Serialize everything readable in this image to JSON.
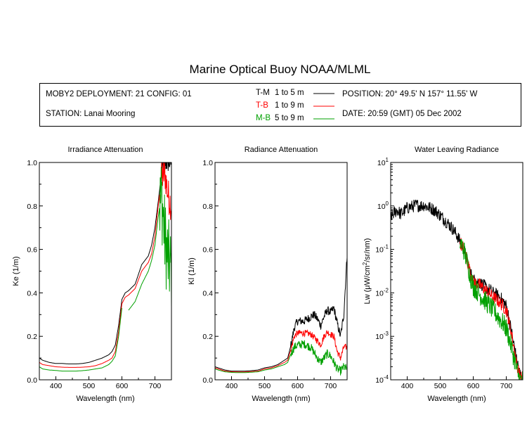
{
  "title": "Marine Optical Buoy NOAA/MLML",
  "info": {
    "deployment": "MOBY2 DEPLOYMENT: 21 CONFIG: 01",
    "station": "STATION: Lanai Mooring",
    "position": "POSITION: 20° 49.5' N   157° 11.55' W",
    "date": "DATE: 20:59 (GMT) 05 Dec 2002",
    "legend": [
      {
        "code": "T-M",
        "range": "1 to 5  m",
        "color": "#000000"
      },
      {
        "code": "T-B",
        "range": "1 to 9  m",
        "color": "#ff0000"
      },
      {
        "code": "M-B",
        "range": "5 to 9  m",
        "color": "#00a000"
      }
    ]
  },
  "chart_data": [
    {
      "type": "line",
      "title": "Irradiance Attenuation",
      "xlabel": "Wavelength (nm)",
      "ylabel": "Ke  (1/m)",
      "xlim": [
        350,
        750
      ],
      "ylim": [
        0,
        1.0
      ],
      "x_ticks": [
        "400",
        "500",
        "600",
        "700"
      ],
      "y_ticks": [
        "0.0",
        "0.2",
        "0.4",
        "0.6",
        "0.8",
        "1.0"
      ],
      "series": [
        {
          "legend": "T-M",
          "color": "#000000",
          "noise_from": 720,
          "noise_amp": 0.05,
          "points": [
            [
              350,
              0.1
            ],
            [
              360,
              0.09
            ],
            [
              380,
              0.08
            ],
            [
              400,
              0.075
            ],
            [
              420,
              0.075
            ],
            [
              440,
              0.073
            ],
            [
              460,
              0.073
            ],
            [
              480,
              0.075
            ],
            [
              500,
              0.08
            ],
            [
              520,
              0.09
            ],
            [
              540,
              0.1
            ],
            [
              560,
              0.115
            ],
            [
              570,
              0.13
            ],
            [
              580,
              0.16
            ],
            [
              590,
              0.25
            ],
            [
              600,
              0.37
            ],
            [
              610,
              0.4
            ],
            [
              620,
              0.41
            ],
            [
              640,
              0.44
            ],
            [
              660,
              0.53
            ],
            [
              680,
              0.57
            ],
            [
              690,
              0.62
            ],
            [
              700,
              0.7
            ],
            [
              710,
              0.82
            ],
            [
              720,
              0.95
            ],
            [
              730,
              1.0
            ],
            [
              750,
              1.0
            ]
          ]
        },
        {
          "legend": "T-B",
          "color": "#ff0000",
          "noise_from": 715,
          "noise_amp": 0.08,
          "points": [
            [
              350,
              0.08
            ],
            [
              360,
              0.07
            ],
            [
              380,
              0.065
            ],
            [
              400,
              0.06
            ],
            [
              420,
              0.058
            ],
            [
              440,
              0.057
            ],
            [
              460,
              0.057
            ],
            [
              480,
              0.058
            ],
            [
              500,
              0.06
            ],
            [
              520,
              0.065
            ],
            [
              540,
              0.075
            ],
            [
              560,
              0.09
            ],
            [
              570,
              0.1
            ],
            [
              580,
              0.13
            ],
            [
              590,
              0.22
            ],
            [
              600,
              0.35
            ],
            [
              610,
              0.38
            ],
            [
              620,
              0.39
            ],
            [
              640,
              0.42
            ],
            [
              660,
              0.5
            ],
            [
              680,
              0.54
            ],
            [
              690,
              0.58
            ],
            [
              700,
              0.66
            ],
            [
              710,
              0.8
            ],
            [
              720,
              0.93
            ],
            [
              730,
              0.95
            ],
            [
              740,
              0.85
            ],
            [
              750,
              0.8
            ]
          ]
        },
        {
          "legend": "M-B",
          "color": "#00a000",
          "noise_from": 715,
          "noise_amp": 0.2,
          "points": [
            [
              350,
              0.06
            ],
            [
              360,
              0.05
            ],
            [
              380,
              0.045
            ],
            [
              400,
              0.043
            ],
            [
              420,
              0.04
            ],
            [
              440,
              0.04
            ],
            [
              460,
              0.04
            ],
            [
              480,
              0.042
            ],
            [
              500,
              0.045
            ],
            [
              520,
              0.05
            ],
            [
              540,
              0.055
            ],
            [
              560,
              0.07
            ],
            [
              570,
              0.085
            ],
            [
              580,
              0.11
            ],
            [
              590,
              0.2
            ],
            [
              600,
              0.33
            ]
          ],
          "segments": [
            [
              [
                620,
                0.32
              ],
              [
                640,
                0.36
              ],
              [
                660,
                0.44
              ],
              [
                680,
                0.5
              ],
              [
                690,
                0.55
              ],
              [
                700,
                0.62
              ],
              [
                710,
                0.75
              ],
              [
                720,
                0.85
              ],
              [
                730,
                0.65
              ],
              [
                740,
                0.55
              ],
              [
                750,
                0.5
              ]
            ]
          ]
        }
      ]
    },
    {
      "type": "line",
      "title": "Radiance Attenuation",
      "xlabel": "Wavelength (nm)",
      "ylabel": "Kl  (1/m)",
      "xlim": [
        350,
        750
      ],
      "ylim": [
        0,
        1.0
      ],
      "x_ticks": [
        "400",
        "500",
        "600",
        "700"
      ],
      "y_ticks": [
        "0.0",
        "0.2",
        "0.4",
        "0.6",
        "0.8",
        "1.0"
      ],
      "series": [
        {
          "legend": "T-M",
          "color": "#000000",
          "noise_from": 580,
          "noise_amp": 0.02,
          "points": [
            [
              350,
              0.06
            ],
            [
              360,
              0.055
            ],
            [
              380,
              0.045
            ],
            [
              400,
              0.04
            ],
            [
              420,
              0.04
            ],
            [
              440,
              0.04
            ],
            [
              460,
              0.042
            ],
            [
              480,
              0.045
            ],
            [
              500,
              0.055
            ],
            [
              520,
              0.06
            ],
            [
              540,
              0.07
            ],
            [
              560,
              0.09
            ],
            [
              570,
              0.1
            ],
            [
              580,
              0.16
            ],
            [
              590,
              0.24
            ],
            [
              600,
              0.27
            ],
            [
              620,
              0.27
            ],
            [
              640,
              0.29
            ],
            [
              650,
              0.3
            ],
            [
              660,
              0.28
            ],
            [
              670,
              0.25
            ],
            [
              680,
              0.29
            ],
            [
              690,
              0.32
            ],
            [
              700,
              0.31
            ],
            [
              710,
              0.33
            ],
            [
              720,
              0.26
            ],
            [
              730,
              0.2
            ],
            [
              740,
              0.3
            ],
            [
              750,
              0.58
            ]
          ]
        },
        {
          "legend": "T-B",
          "color": "#ff0000",
          "noise_from": 580,
          "noise_amp": 0.015,
          "points": [
            [
              350,
              0.055
            ],
            [
              360,
              0.05
            ],
            [
              380,
              0.04
            ],
            [
              400,
              0.037
            ],
            [
              420,
              0.036
            ],
            [
              440,
              0.036
            ],
            [
              460,
              0.038
            ],
            [
              480,
              0.04
            ],
            [
              500,
              0.05
            ],
            [
              520,
              0.055
            ],
            [
              540,
              0.065
            ],
            [
              560,
              0.08
            ],
            [
              570,
              0.09
            ],
            [
              580,
              0.14
            ],
            [
              590,
              0.2
            ],
            [
              600,
              0.215
            ],
            [
              620,
              0.215
            ],
            [
              640,
              0.21
            ],
            [
              660,
              0.18
            ],
            [
              670,
              0.16
            ],
            [
              680,
              0.2
            ],
            [
              690,
              0.22
            ],
            [
              700,
              0.21
            ],
            [
              710,
              0.2
            ],
            [
              720,
              0.13
            ],
            [
              730,
              0.1
            ],
            [
              740,
              0.15
            ],
            [
              750,
              0.15
            ]
          ]
        },
        {
          "legend": "M-B",
          "color": "#00a000",
          "noise_from": 580,
          "noise_amp": 0.02,
          "points": [
            [
              350,
              0.05
            ],
            [
              360,
              0.045
            ],
            [
              380,
              0.037
            ],
            [
              400,
              0.034
            ],
            [
              420,
              0.033
            ],
            [
              440,
              0.033
            ],
            [
              460,
              0.035
            ],
            [
              480,
              0.037
            ],
            [
              500,
              0.045
            ],
            [
              520,
              0.05
            ],
            [
              540,
              0.06
            ],
            [
              560,
              0.07
            ],
            [
              570,
              0.08
            ],
            [
              580,
              0.12
            ],
            [
              590,
              0.15
            ],
            [
              600,
              0.16
            ],
            [
              620,
              0.165
            ],
            [
              640,
              0.15
            ],
            [
              660,
              0.1
            ],
            [
              670,
              0.08
            ],
            [
              680,
              0.1
            ],
            [
              690,
              0.12
            ],
            [
              700,
              0.11
            ],
            [
              710,
              0.08
            ],
            [
              720,
              0.05
            ],
            [
              730,
              0.04
            ],
            [
              740,
              0.06
            ],
            [
              750,
              0.05
            ]
          ]
        }
      ]
    },
    {
      "type": "line",
      "title": "Water Leaving Radiance",
      "xlabel": "Wavelength (nm)",
      "ylabel_prefix": "Lw  (μW/cm",
      "ylabel_sup": "2",
      "ylabel_suffix": "/sr/nm)",
      "yscale": "log",
      "xlim": [
        350,
        750
      ],
      "ylim_exp": [
        -4,
        1
      ],
      "x_ticks": [
        "400",
        "500",
        "600",
        "700"
      ],
      "y_ticks": [
        {
          "base": "10",
          "exp": "1"
        },
        {
          "base": "10",
          "exp": "0"
        },
        {
          "base": "10",
          "exp": "-1"
        },
        {
          "base": "10",
          "exp": "-2"
        },
        {
          "base": "10",
          "exp": "-3"
        },
        {
          "base": "10",
          "exp": "-4"
        }
      ],
      "series": [
        {
          "legend": "T-M",
          "color": "#000000",
          "noise_from": 350,
          "noise_amp": 0.05,
          "points": [
            [
              350,
              0.55
            ],
            [
              360,
              0.7
            ],
            [
              370,
              0.8
            ],
            [
              380,
              0.65
            ],
            [
              390,
              0.75
            ],
            [
              400,
              0.9
            ],
            [
              410,
              0.95
            ],
            [
              420,
              1.0
            ],
            [
              430,
              1.05
            ],
            [
              440,
              1.0
            ],
            [
              450,
              1.05
            ],
            [
              460,
              0.95
            ],
            [
              470,
              0.9
            ],
            [
              480,
              0.82
            ],
            [
              490,
              0.72
            ],
            [
              500,
              0.6
            ],
            [
              520,
              0.42
            ],
            [
              540,
              0.28
            ],
            [
              560,
              0.15
            ],
            [
              580,
              0.06
            ],
            [
              590,
              0.03
            ],
            [
              600,
              0.02
            ],
            [
              620,
              0.017
            ],
            [
              640,
              0.013
            ],
            [
              660,
              0.01
            ],
            [
              680,
              0.008
            ],
            [
              700,
              0.005
            ],
            [
              710,
              0.002
            ],
            [
              720,
              0.0008
            ],
            [
              730,
              0.0003
            ],
            [
              740,
              0.00015
            ],
            [
              750,
              0.0001
            ]
          ]
        },
        {
          "legend": "T-B",
          "color": "#ff0000",
          "noise_from": 560,
          "noise_amp": 0.05,
          "points": [
            [
              560,
              0.15
            ],
            [
              580,
              0.06
            ],
            [
              590,
              0.03
            ],
            [
              600,
              0.018
            ],
            [
              620,
              0.015
            ],
            [
              640,
              0.011
            ],
            [
              660,
              0.008
            ],
            [
              680,
              0.006
            ],
            [
              700,
              0.004
            ],
            [
              710,
              0.0018
            ],
            [
              720,
              0.0007
            ],
            [
              730,
              0.00025
            ],
            [
              740,
              0.00013
            ],
            [
              750,
              0.0001
            ]
          ]
        },
        {
          "legend": "M-B",
          "color": "#00a000",
          "noise_from": 560,
          "noise_amp": 0.08,
          "points": [
            [
              560,
              0.15
            ],
            [
              580,
              0.055
            ],
            [
              590,
              0.025
            ],
            [
              600,
              0.014
            ],
            [
              620,
              0.009
            ],
            [
              640,
              0.006
            ],
            [
              660,
              0.004
            ],
            [
              680,
              0.0025
            ],
            [
              700,
              0.0015
            ],
            [
              710,
              0.0008
            ],
            [
              720,
              0.0004
            ],
            [
              730,
              0.00018
            ],
            [
              740,
              0.0001
            ],
            [
              750,
              0.0001
            ]
          ]
        }
      ]
    }
  ]
}
